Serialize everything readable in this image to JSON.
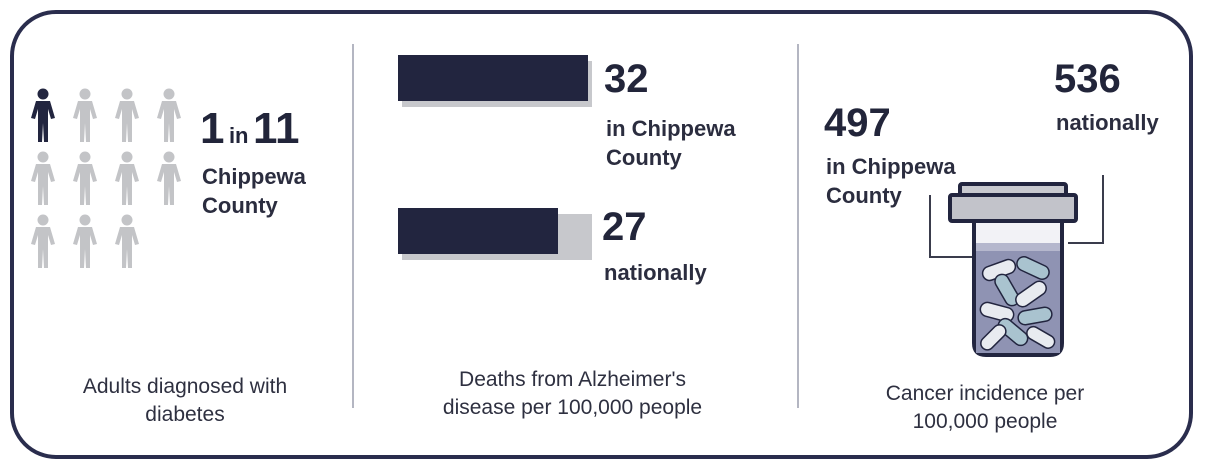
{
  "colors": {
    "dark": "#22253f",
    "gray_person": "#c3c4c7",
    "frame": "#2a2d4d",
    "track": "#c7c8cc",
    "pill_light": "#e8ebf0",
    "pill_blue": "#a9c3cf"
  },
  "chart_data": [
    {
      "type": "pictograph",
      "icon": "person-icon",
      "highlighted": 1,
      "total": 11,
      "value_text": {
        "num": "1",
        "mid": "in",
        "den": "11"
      },
      "label_lines": [
        "Chippewa",
        "County"
      ],
      "caption_lines": [
        "Adults diagnosed with",
        "diabetes"
      ]
    },
    {
      "type": "bar",
      "categories": [
        "in Chippewa County",
        "nationally"
      ],
      "values": [
        32,
        27
      ],
      "bars": [
        {
          "value": 32,
          "value_text": "32",
          "label_lines": [
            "in Chippewa",
            "County"
          ]
        },
        {
          "value": 27,
          "value_text": "27",
          "label_lines": [
            "nationally"
          ]
        }
      ],
      "caption_lines": [
        "Deaths from Alzheimer's",
        "disease per 100,000 people"
      ]
    },
    {
      "type": "pictograph",
      "icon": "pill-bottle-icon",
      "values": [
        497,
        536
      ],
      "local": {
        "value_text": "497",
        "label_lines": [
          "in Chippewa",
          "County"
        ]
      },
      "national": {
        "value_text": "536",
        "label_lines": [
          "nationally"
        ]
      },
      "caption_lines": [
        "Cancer incidence per",
        "100,000 people"
      ]
    }
  ]
}
